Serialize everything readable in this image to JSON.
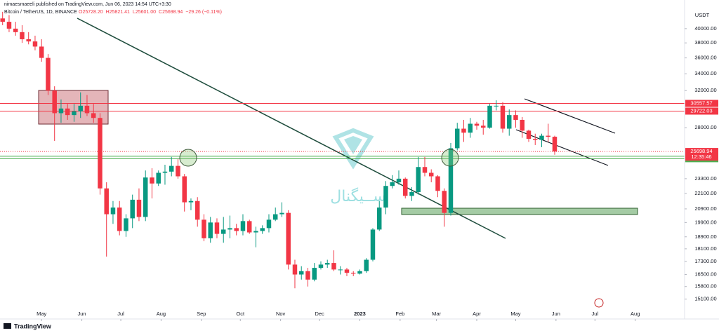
{
  "published_note": "nimaesmaeeli published on TradingView.com, Jun 06, 2023 14:54 UTC+3:30",
  "brand": "TradingView",
  "chart_data": {
    "type": "candlestick",
    "title": "Bitcoin / TetherUS, 1D, BINANCE",
    "ohlc_legend": [
      "O25728.20",
      "H25821.41",
      "L25601.00",
      "C25698.94",
      "−29.26 (−0.11%)"
    ],
    "y_axis_label": "USDT",
    "watermark": "ســیگنال",
    "log_scale": true,
    "grid": false,
    "up_color": "#089981",
    "down_color": "#f23645",
    "xlim": [
      -2,
      525
    ],
    "ylim": [
      14600,
      42700
    ],
    "xticks": [
      {
        "value": 30,
        "label": "May"
      },
      {
        "value": 61,
        "label": "Jun"
      },
      {
        "value": 91,
        "label": "Jul"
      },
      {
        "value": 122,
        "label": "Aug"
      },
      {
        "value": 153,
        "label": "Sep"
      },
      {
        "value": 183,
        "label": "Oct"
      },
      {
        "value": 214,
        "label": "Nov"
      },
      {
        "value": 244,
        "label": "Dec"
      },
      {
        "value": 275,
        "label": "2023"
      },
      {
        "value": 306,
        "label": "Feb"
      },
      {
        "value": 334,
        "label": "Mar"
      },
      {
        "value": 365,
        "label": "Apr"
      },
      {
        "value": 395,
        "label": "May"
      },
      {
        "value": 426,
        "label": "Jun"
      },
      {
        "value": 456,
        "label": "Jul"
      },
      {
        "value": 487,
        "label": "Aug"
      }
    ],
    "yticks": [
      {
        "value": 40000,
        "label": "40000.00"
      },
      {
        "value": 38000,
        "label": "38000.00"
      },
      {
        "value": 36000,
        "label": "36000.00"
      },
      {
        "value": 34000,
        "label": "34000.00"
      },
      {
        "value": 32000,
        "label": "32000.00"
      },
      {
        "value": 28000,
        "label": "28000.00"
      },
      {
        "value": 23300,
        "label": "23300.00"
      },
      {
        "value": 22100,
        "label": "22100.00"
      },
      {
        "value": 20900,
        "label": "20900.00"
      },
      {
        "value": 19900,
        "label": "19900.00"
      },
      {
        "value": 18900,
        "label": "18900.00"
      },
      {
        "value": 18100,
        "label": "18100.00"
      },
      {
        "value": 17300,
        "label": "17300.00"
      },
      {
        "value": 16500,
        "label": "16500.00"
      },
      {
        "value": 15800,
        "label": "15800.00"
      },
      {
        "value": 15100,
        "label": "15100.00"
      }
    ],
    "levels": [
      {
        "value": 30557.57,
        "color": "#f23645"
      },
      {
        "value": 29722.03,
        "color": "#f23645"
      },
      {
        "value": 25261.38,
        "color": "#4caf50"
      },
      {
        "value": 25038.61,
        "color": "#4caf50"
      }
    ],
    "last_price": 25698.94,
    "countdown": "12:35:46",
    "x": [
      0,
      5,
      10,
      15,
      20,
      25,
      30,
      35,
      40,
      45,
      50,
      55,
      60,
      65,
      70,
      75,
      80,
      85,
      90,
      95,
      100,
      105,
      110,
      115,
      120,
      125,
      130,
      135,
      140,
      145,
      150,
      155,
      160,
      165,
      170,
      175,
      180,
      185,
      190,
      195,
      200,
      205,
      210,
      215,
      220,
      225,
      230,
      235,
      240,
      245,
      250,
      255,
      260,
      265,
      270,
      275,
      280,
      285,
      290,
      295,
      300,
      305,
      310,
      315,
      320,
      325,
      330,
      335,
      340,
      345,
      350,
      355,
      360,
      365,
      370,
      375,
      380,
      385,
      390,
      395,
      400,
      405,
      410,
      415,
      420,
      425
    ],
    "open": [
      41500,
      41000,
      40000,
      39500,
      38500,
      38200,
      37500,
      36000,
      32000,
      29500,
      30000,
      29300,
      29700,
      30300,
      29500,
      29000,
      22500,
      20500,
      21000,
      19300,
      20200,
      21600,
      20300,
      23400,
      22900,
      23800,
      23900,
      24400,
      23500,
      21400,
      21500,
      20100,
      18800,
      19900,
      19100,
      19400,
      19500,
      19300,
      20000,
      19200,
      19300,
      19500,
      20100,
      20500,
      20600,
      17100,
      16500,
      16700,
      16200,
      16900,
      17100,
      17200,
      16800,
      16800,
      16600,
      16550,
      16700,
      17400,
      19400,
      21000,
      22700,
      23000,
      23300,
      21900,
      22200,
      24300,
      23800,
      23500,
      22300,
      20600,
      26000,
      27900,
      27500,
      28400,
      28200,
      28000,
      30300,
      30300,
      27900,
      29300,
      28800,
      27700,
      26900,
      26800,
      27200,
      27100
    ],
    "high": [
      42500,
      42000,
      41000,
      40500,
      39500,
      39000,
      38500,
      36500,
      32500,
      31000,
      30500,
      30500,
      31800,
      31500,
      30500,
      29500,
      23000,
      21500,
      21500,
      20500,
      22000,
      22500,
      24000,
      24200,
      24000,
      24500,
      25200,
      25000,
      23700,
      21700,
      21800,
      20500,
      20300,
      20200,
      20300,
      20400,
      19800,
      20500,
      20100,
      19600,
      19700,
      20500,
      21000,
      21400,
      20800,
      17400,
      17000,
      16900,
      17200,
      17300,
      17400,
      18000,
      17000,
      16900,
      16700,
      16800,
      17500,
      19500,
      21500,
      23100,
      23600,
      24000,
      23400,
      22600,
      25200,
      25200,
      24100,
      23600,
      22500,
      26500,
      28500,
      28800,
      29000,
      28600,
      28800,
      30500,
      30900,
      30700,
      29900,
      29800,
      29100,
      27800,
      27400,
      27400,
      28400,
      27200
    ],
    "low": [
      40500,
      39500,
      39000,
      38000,
      37800,
      37000,
      35500,
      31500,
      26700,
      28500,
      28800,
      28600,
      29000,
      29200,
      28500,
      22000,
      17600,
      19800,
      19000,
      18900,
      19500,
      20000,
      20000,
      21700,
      22700,
      22800,
      23500,
      23300,
      20700,
      20800,
      19600,
      18600,
      18500,
      18800,
      18500,
      18800,
      19000,
      19000,
      19100,
      18200,
      19100,
      19200,
      20000,
      20300,
      16800,
      15700,
      16200,
      15800,
      16100,
      16800,
      16900,
      16700,
      16500,
      16400,
      16400,
      16500,
      16600,
      17300,
      19300,
      20500,
      22500,
      22800,
      21700,
      21500,
      22000,
      23500,
      23000,
      21800,
      19600,
      20400,
      25800,
      26600,
      27000,
      27800,
      27300,
      27900,
      29800,
      27500,
      27200,
      28000,
      27000,
      26600,
      26300,
      26100,
      26600,
      25400
    ],
    "close": [
      41000,
      40000,
      39500,
      38500,
      38200,
      37500,
      36000,
      32000,
      29500,
      30000,
      29300,
      29700,
      30300,
      29500,
      29000,
      22500,
      20500,
      21000,
      19300,
      20200,
      21600,
      20300,
      23400,
      22900,
      23800,
      23900,
      24400,
      23500,
      21400,
      21500,
      20100,
      18800,
      19900,
      19100,
      19400,
      19500,
      19300,
      20000,
      19200,
      19300,
      19500,
      20100,
      20500,
      20600,
      17100,
      16500,
      16700,
      16200,
      16900,
      17100,
      17200,
      16800,
      16800,
      16600,
      16550,
      16700,
      17400,
      19400,
      21000,
      22700,
      23000,
      23300,
      21900,
      22200,
      24300,
      23800,
      23500,
      22300,
      20600,
      26000,
      27900,
      27500,
      28400,
      28200,
      28000,
      30300,
      30300,
      27900,
      29300,
      28800,
      27700,
      26900,
      26800,
      27200,
      27100,
      25698.94
    ]
  }
}
